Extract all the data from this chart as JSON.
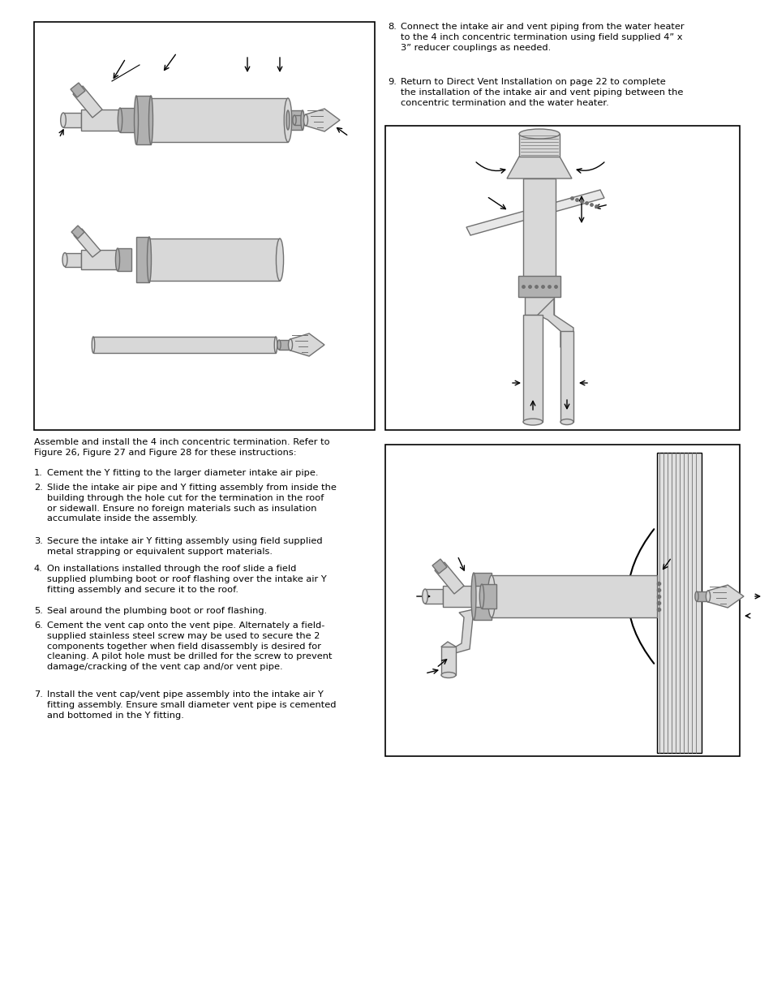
{
  "page_bg": "#ffffff",
  "fig_width": 9.54,
  "fig_height": 12.35,
  "dpi": 100,
  "colors": {
    "gray_light": "#d8d8d8",
    "gray_med": "#b0b0b0",
    "gray_dark": "#707070",
    "black": "#000000",
    "white": "#ffffff",
    "wall_fill": "#e0e0e0",
    "roof_fill": "#e8e8e8"
  },
  "text": {
    "item8": "8. Connect the intake air and vent piping from the water heater\n  to the 4 inch concentric termination using field supplied 4” x\n  3” reducer couplings as needed.",
    "item9": "9. Return to Direct Vent Installation on page 22 to complete\n  the installation of the intake air and vent piping between the\n  concentric termination and the water heater.",
    "intro": "Assemble and install the 4 inch concentric termination. Refer to\nFigure 26, Figure 27 and Figure 28 for these instructions:",
    "item1": "1. Cement the Y fitting to the larger diameter intake air pipe.",
    "item2_n": "2.",
    "item2": "Slide the intake air pipe and Y fitting assembly from inside the\nbuilding through the hole cut for the termination in the roof\nor sidewall. Ensure no foreign materials such as insulation\naccumulate inside the assembly.",
    "item3_n": "3.",
    "item3": "Secure the intake air Y fitting assembly using field supplied\nmetal strapping or equivalent support materials.",
    "item4_n": "4.",
    "item4": "On installations installed through the roof slide a field\nsupplied plumbing boot or roof flashing over the intake air Y\nfitting assembly and secure it to the roof.",
    "item5": "5. Seal around the plumbing boot or roof flashing.",
    "item6_n": "6.",
    "item6": "Cement the vent cap onto the vent pipe. Alternately a field-\nsupplied stainless steel screw may be used to secure the 2\ncomponents together when field disassembly is desired for\ncleaning. A pilot hole must be drilled for the screw to prevent\ndamage/cracking of the vent cap and/or vent pipe.",
    "item7_n": "7.",
    "item7": "Install the vent cap/vent pipe assembly into the intake air Y\nfitting assembly. Ensure small diameter vent pipe is cemented\nand bottomed in the Y fitting."
  },
  "font_size": 8.2
}
